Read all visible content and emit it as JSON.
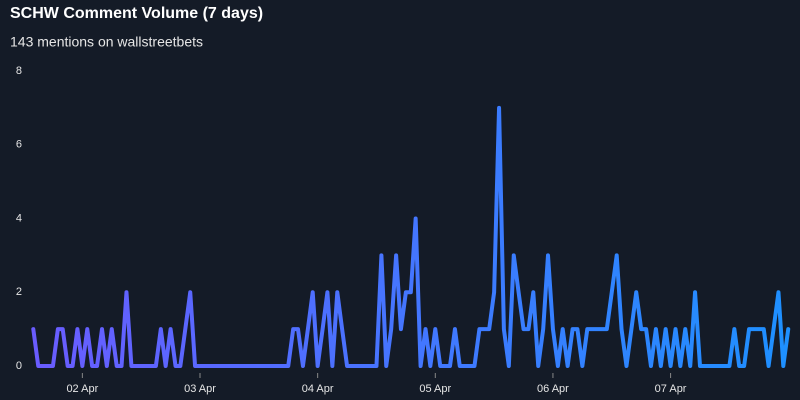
{
  "chart_data": {
    "type": "line",
    "title": "SCHW Comment Volume (7 days)",
    "subtitle": "143 mentions on wallstreetbets",
    "x": [
      1.583,
      1.625,
      1.667,
      1.708,
      1.75,
      1.792,
      1.833,
      1.875,
      1.917,
      1.958,
      2,
      2.042,
      2.083,
      2.125,
      2.167,
      2.208,
      2.25,
      2.292,
      2.333,
      2.375,
      2.417,
      2.458,
      2.5,
      2.542,
      2.583,
      2.625,
      2.667,
      2.708,
      2.75,
      2.792,
      2.833,
      2.875,
      2.917,
      2.958,
      3,
      3.042,
      3.083,
      3.125,
      3.167,
      3.208,
      3.25,
      3.292,
      3.333,
      3.375,
      3.417,
      3.458,
      3.5,
      3.542,
      3.583,
      3.625,
      3.667,
      3.708,
      3.75,
      3.792,
      3.833,
      3.875,
      3.917,
      3.958,
      4,
      4.042,
      4.083,
      4.125,
      4.167,
      4.208,
      4.25,
      4.292,
      4.333,
      4.375,
      4.417,
      4.458,
      4.5,
      4.542,
      4.583,
      4.625,
      4.667,
      4.708,
      4.75,
      4.792,
      4.833,
      4.875,
      4.917,
      4.958,
      5,
      5.042,
      5.083,
      5.125,
      5.167,
      5.208,
      5.25,
      5.292,
      5.333,
      5.375,
      5.417,
      5.458,
      5.5,
      5.542,
      5.583,
      5.625,
      5.667,
      5.708,
      5.75,
      5.792,
      5.833,
      5.875,
      5.917,
      5.958,
      6,
      6.042,
      6.083,
      6.125,
      6.167,
      6.208,
      6.25,
      6.292,
      6.333,
      6.375,
      6.417,
      6.458,
      6.5,
      6.542,
      6.583,
      6.625,
      6.667,
      6.708,
      6.75,
      6.792,
      6.833,
      6.875,
      6.917,
      6.958,
      7,
      7.042,
      7.083,
      7.125,
      7.167,
      7.208,
      7.25,
      7.292,
      7.333,
      7.375,
      7.417,
      7.458,
      7.5,
      7.542,
      7.583,
      7.625,
      7.667,
      7.708,
      7.75,
      7.792,
      7.833,
      7.875,
      7.917,
      7.958,
      8
    ],
    "series": [
      {
        "color": [
          "#6a5cff",
          "#1e90ff"
        ],
        "values": [
          1,
          0,
          0,
          0,
          0,
          1,
          1,
          0,
          0,
          1,
          0,
          1,
          0,
          0,
          1,
          0,
          1,
          0,
          0,
          2,
          0,
          0,
          0,
          0,
          0,
          0,
          1,
          0,
          1,
          0,
          0,
          1,
          2,
          0,
          0,
          0,
          0,
          0,
          0,
          0,
          0,
          0,
          0,
          0,
          0,
          0,
          0,
          0,
          0,
          0,
          0,
          0,
          0,
          1,
          1,
          0,
          1,
          2,
          0,
          1,
          2,
          0,
          2,
          1,
          0,
          0,
          0,
          0,
          0,
          0,
          0,
          3,
          0,
          1,
          3,
          1,
          2,
          2,
          4,
          0,
          1,
          0,
          1,
          0,
          0,
          0,
          1,
          0,
          0,
          0,
          0,
          1,
          1,
          1,
          2,
          7,
          1,
          0,
          3,
          2,
          1,
          1,
          2,
          0,
          1,
          3,
          1,
          0,
          1,
          0,
          1,
          1,
          0,
          1,
          1,
          1,
          1,
          1,
          2,
          3,
          1,
          0,
          1,
          2,
          1,
          1,
          0,
          1,
          0,
          1,
          0,
          1,
          0,
          1,
          0,
          2,
          0,
          0,
          0,
          0,
          0,
          0,
          0,
          1,
          0,
          0,
          1,
          1,
          1,
          1,
          0,
          1,
          2,
          0,
          1
        ]
      }
    ],
    "xlim": [
      1.3,
      8.1
    ],
    "xticks": [
      {
        "value": 2,
        "label": "02 Apr"
      },
      {
        "value": 3,
        "label": "03 Apr"
      },
      {
        "value": 4,
        "label": "04 Apr"
      },
      {
        "value": 5,
        "label": "05 Apr"
      },
      {
        "value": 6,
        "label": "06 Apr"
      },
      {
        "value": 7,
        "label": "07 Apr"
      }
    ],
    "ylim": [
      0,
      8
    ],
    "yticks": [
      0,
      2,
      4,
      6,
      8
    ],
    "grid": false
  }
}
